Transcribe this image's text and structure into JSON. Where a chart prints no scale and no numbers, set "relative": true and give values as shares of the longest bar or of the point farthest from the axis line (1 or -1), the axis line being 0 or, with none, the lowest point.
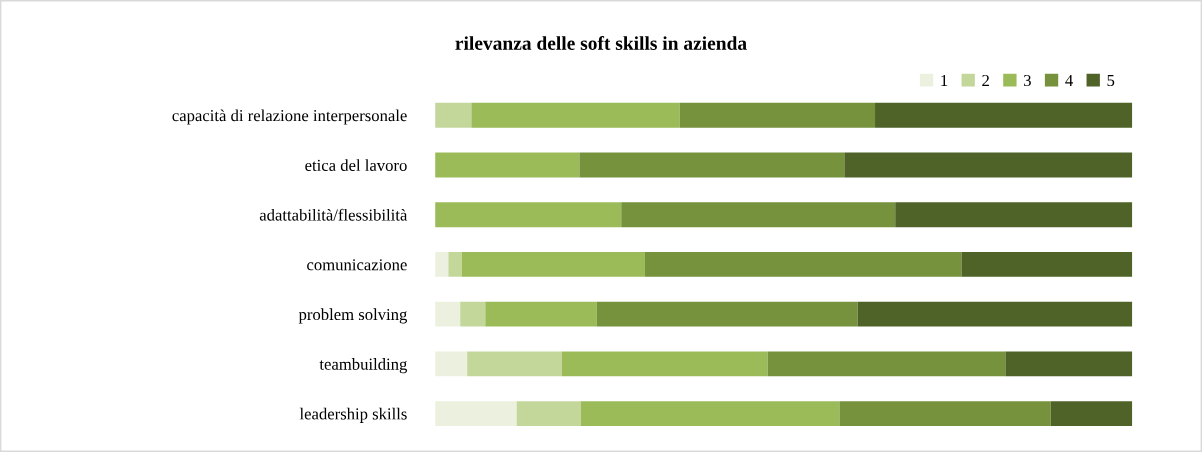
{
  "chart_data": {
    "type": "bar",
    "orientation": "horizontal",
    "stacked": true,
    "relative": true,
    "title": "rilevanza delle soft skills in azienda",
    "categories": [
      "capacità di relazione interpersonale",
      "etica del lavoro",
      "adattabilità/flessibilità",
      "comunicazione",
      "problem solving",
      "teambuilding",
      "leadership skills"
    ],
    "series": [
      {
        "name": "1",
        "color": "#ebf1de",
        "values": [
          0,
          0,
          0,
          0.019,
          0.036,
          0.046,
          0.117
        ]
      },
      {
        "name": "2",
        "color": "#c4d79b",
        "values": [
          0.052,
          0,
          0,
          0.019,
          0.036,
          0.136,
          0.092
        ]
      },
      {
        "name": "3",
        "color": "#9bbb59",
        "values": [
          0.299,
          0.207,
          0.267,
          0.263,
          0.16,
          0.295,
          0.371
        ]
      },
      {
        "name": "4",
        "color": "#76923c",
        "values": [
          0.28,
          0.38,
          0.393,
          0.454,
          0.374,
          0.341,
          0.303
        ]
      },
      {
        "name": "5",
        "color": "#4f6228",
        "values": [
          0.369,
          0.413,
          0.34,
          0.245,
          0.394,
          0.182,
          0.117
        ]
      }
    ],
    "legend": "top right",
    "grid": false
  }
}
